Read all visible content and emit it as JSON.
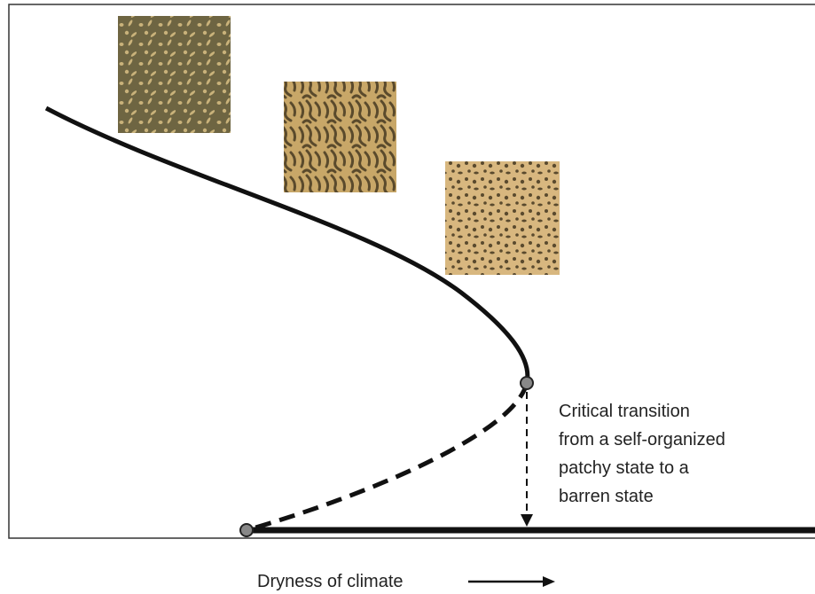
{
  "annotation": {
    "lines": [
      "Critical transition",
      "from a self-organized",
      "patchy state to a",
      "barren state"
    ]
  },
  "x_axis": {
    "label": "Dryness of climate"
  }
}
